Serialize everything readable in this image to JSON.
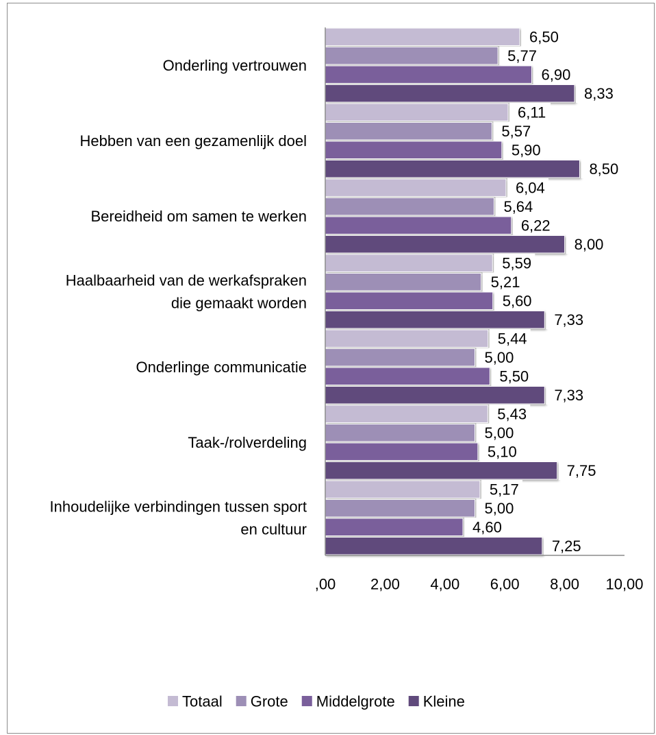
{
  "chart_data": {
    "type": "bar",
    "orientation": "horizontal",
    "categories": [
      "Onderling vertrouwen",
      "Hebben van een gezamenlijk doel",
      "Bereidheid om samen te werken",
      "Haalbaarheid van de werkafspraken die gemaakt worden",
      "Onderlinge communicatie",
      "Taak-/rolverdeling",
      "Inhoudelijke verbindingen tussen sport en cultuur"
    ],
    "category_lines": [
      [
        "Onderling vertrouwen"
      ],
      [
        "Hebben van een gezamenlijk doel"
      ],
      [
        "Bereidheid om samen te werken"
      ],
      [
        "Haalbaarheid van de werkafspraken",
        "die gemaakt worden"
      ],
      [
        "Onderlinge communicatie"
      ],
      [
        "Taak-/rolverdeling"
      ],
      [
        "Inhoudelijke verbindingen tussen sport",
        "en cultuur"
      ]
    ],
    "series": [
      {
        "name": "Totaal",
        "color": "#c4bbd3",
        "values": [
          6.5,
          6.11,
          6.04,
          5.59,
          5.44,
          5.43,
          5.17
        ],
        "labels": [
          "6,50",
          "6,11",
          "6,04",
          "5,59",
          "5,44",
          "5,43",
          "5,17"
        ]
      },
      {
        "name": "Grote",
        "color": "#9d8fb6",
        "values": [
          5.77,
          5.57,
          5.64,
          5.21,
          5.0,
          5.0,
          5.0
        ],
        "labels": [
          "5,77",
          "5,57",
          "5,64",
          "5,21",
          "5,00",
          "5,00",
          "5,00"
        ]
      },
      {
        "name": "Middelgrote",
        "color": "#7a5f9b",
        "values": [
          6.9,
          5.9,
          6.22,
          5.6,
          5.5,
          5.1,
          4.6
        ],
        "labels": [
          "6,90",
          "5,90",
          "6,22",
          "5,60",
          "5,50",
          "5,10",
          "4,60"
        ]
      },
      {
        "name": "Kleine",
        "color": "#604a7c",
        "values": [
          8.33,
          8.5,
          8.0,
          7.33,
          7.33,
          7.75,
          7.25
        ],
        "labels": [
          "8,33",
          "8,50",
          "8,00",
          "7,33",
          "7,33",
          "7,75",
          "7,25"
        ]
      }
    ],
    "xlim": [
      0,
      10
    ],
    "xticks": [
      0,
      2,
      4,
      6,
      8,
      10
    ],
    "xtick_labels": [
      ",00",
      "2,00",
      "4,00",
      "6,00",
      "8,00",
      "10,00"
    ],
    "grid": false,
    "legend": "bottom",
    "title": "",
    "xlabel": "",
    "ylabel": ""
  }
}
